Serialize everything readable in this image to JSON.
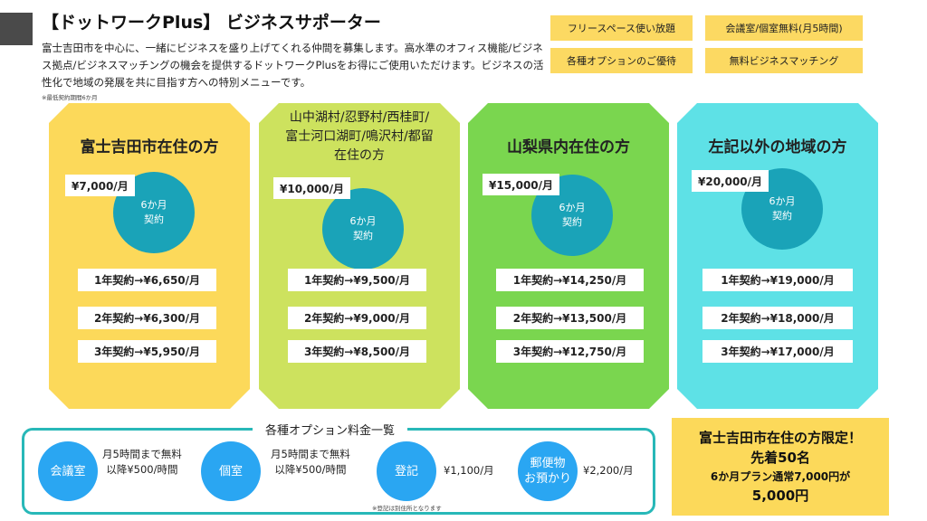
{
  "header": {
    "title": "【ドットワークPlus】 ビジネスサポーター",
    "intro": "富士吉田市を中心に、一緒にビジネスを盛り上げてくれる仲間を募集します。高水準のオフィス機能/ビジネス拠点/ビジネスマッチングの機会を提供するドットワークPlusをお得にご使用いただけます。ビジネスの活性化で地域の発展を共に目指す方への特別メニューです。",
    "note": "※最低契約期間6か月"
  },
  "tags": [
    "フリースペース使い放題",
    "会議室/個室無料(月5時間)",
    "各種オプションのご優待",
    "無料ビジネスマッチング"
  ],
  "plans": [
    {
      "name": "富士吉田市在住の方",
      "price": "¥7,000/月",
      "circle_line1": "6か月",
      "circle_line2": "契約",
      "rows": [
        "1年契約→¥6,650/月",
        "2年契約→¥6,300/月",
        "3年契約→¥5,950/月"
      ]
    },
    {
      "name_lines": [
        "山中湖村/忍野村/西桂町/",
        "富士河口湖町/鳴沢村/都留",
        "在住の方"
      ],
      "price": "¥10,000/月",
      "circle_line1": "6か月",
      "circle_line2": "契約",
      "rows": [
        "1年契約→¥9,500/月",
        "2年契約→¥9,000/月",
        "3年契約→¥8,500/月"
      ]
    },
    {
      "name": "山梨県内在住の方",
      "price": "¥15,000/月",
      "circle_line1": "6か月",
      "circle_line2": "契約",
      "rows": [
        "1年契約→¥14,250/月",
        "2年契約→¥13,500/月",
        "3年契約→¥12,750/月"
      ]
    },
    {
      "name": "左記以外の地域の方",
      "price": "¥20,000/月",
      "circle_line1": "6か月",
      "circle_line2": "契約",
      "rows": [
        "1年契約→¥19,000/月",
        "2年契約→¥18,000/月",
        "3年契約→¥17,000/月"
      ]
    }
  ],
  "options": {
    "title": "各種オプション料金一覧",
    "items": [
      {
        "label": "会議室",
        "text_lines": [
          "月5時間まで無料",
          "以降¥500/時間"
        ]
      },
      {
        "label": "個室",
        "text_lines": [
          "月5時間まで無料",
          "以降¥500/時間"
        ]
      },
      {
        "label": "登記",
        "text_lines": [
          "¥1,100/月"
        ]
      },
      {
        "label_lines": [
          "郵便物",
          "お預かり"
        ],
        "text_lines": [
          "¥2,200/月"
        ]
      }
    ],
    "note": "※登記は別住所となります"
  },
  "promo": {
    "line1": "富士吉田市在住の方限定！",
    "line2": "先着50名",
    "line3": "6か月プラン通常7,000円が",
    "line4": "5,000円"
  },
  "colors": {
    "plan1": "#fcd95a",
    "plan2": "#cde25e",
    "plan3": "#7ad64f",
    "plan4": "#5ee1e6",
    "circle": "#1aa3b8",
    "option_circle": "#2aa6f2",
    "option_border": "#28b8b8",
    "tag": "#fcd962"
  }
}
